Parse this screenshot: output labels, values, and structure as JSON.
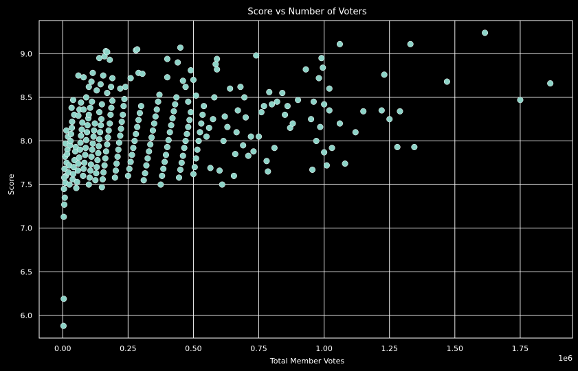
{
  "chart_data": {
    "type": "scatter",
    "title": "Score vs Number of Voters",
    "xlabel": "Total Member Votes",
    "ylabel": "Score",
    "x_offset_label": "1e6",
    "xlim": [
      -0.09,
      1.95
    ],
    "ylim": [
      5.74,
      9.38
    ],
    "x_ticks": [
      0.0,
      0.25,
      0.5,
      0.75,
      1.0,
      1.25,
      1.5,
      1.75
    ],
    "x_tick_labels": [
      "0.00",
      "0.25",
      "0.50",
      "0.75",
      "1.00",
      "1.25",
      "1.50",
      "1.75"
    ],
    "y_ticks": [
      6.0,
      6.5,
      7.0,
      7.5,
      8.0,
      8.5,
      9.0
    ],
    "y_tick_labels": [
      "6.0",
      "6.5",
      "7.0",
      "7.5",
      "8.0",
      "8.5",
      "9.0"
    ],
    "grid": true,
    "colors": {
      "background": "#000000",
      "marker": "#8dd3c7",
      "grid": "#ffffff",
      "text": "#ffffff"
    },
    "series": [
      {
        "points": [
          [
            0.003,
            5.88
          ],
          [
            0.004,
            6.19
          ],
          [
            0.004,
            7.13
          ],
          [
            0.006,
            7.27
          ],
          [
            0.008,
            7.35
          ],
          [
            0.005,
            7.45
          ],
          [
            0.01,
            7.52
          ],
          [
            0.012,
            7.6
          ],
          [
            0.007,
            7.68
          ],
          [
            0.015,
            7.75
          ],
          [
            0.009,
            7.82
          ],
          [
            0.018,
            7.9
          ],
          [
            0.011,
            7.97
          ],
          [
            0.02,
            8.05
          ],
          [
            0.014,
            8.12
          ],
          [
            0.006,
            7.58
          ],
          [
            0.022,
            7.64
          ],
          [
            0.025,
            7.72
          ],
          [
            0.017,
            7.85
          ],
          [
            0.028,
            7.95
          ],
          [
            0.03,
            8.0
          ],
          [
            0.032,
            8.08
          ],
          [
            0.035,
            8.15
          ],
          [
            0.026,
            7.5
          ],
          [
            0.038,
            7.56
          ],
          [
            0.04,
            7.62
          ],
          [
            0.042,
            7.7
          ],
          [
            0.045,
            7.78
          ],
          [
            0.048,
            7.88
          ],
          [
            0.05,
            7.93
          ],
          [
            0.036,
            8.22
          ],
          [
            0.044,
            8.3
          ],
          [
            0.034,
            8.38
          ],
          [
            0.04,
            8.47
          ],
          [
            0.052,
            7.46
          ],
          [
            0.055,
            7.53
          ],
          [
            0.058,
            7.66
          ],
          [
            0.06,
            7.74
          ],
          [
            0.063,
            7.81
          ],
          [
            0.066,
            7.9
          ],
          [
            0.068,
            7.98
          ],
          [
            0.07,
            8.06
          ],
          [
            0.073,
            8.13
          ],
          [
            0.075,
            8.21
          ],
          [
            0.06,
            8.29
          ],
          [
            0.064,
            8.36
          ],
          [
            0.078,
            7.6
          ],
          [
            0.08,
            7.68
          ],
          [
            0.083,
            7.75
          ],
          [
            0.086,
            7.84
          ],
          [
            0.088,
            7.92
          ],
          [
            0.09,
            8.01
          ],
          [
            0.093,
            8.1
          ],
          [
            0.095,
            8.18
          ],
          [
            0.098,
            8.26
          ],
          [
            0.07,
            8.44
          ],
          [
            0.09,
            8.5
          ],
          [
            0.08,
            8.36
          ],
          [
            0.1,
            7.5
          ],
          [
            0.103,
            7.58
          ],
          [
            0.106,
            7.66
          ],
          [
            0.108,
            7.73
          ],
          [
            0.11,
            7.82
          ],
          [
            0.113,
            7.9
          ],
          [
            0.115,
            7.97
          ],
          [
            0.118,
            8.05
          ],
          [
            0.12,
            8.12
          ],
          [
            0.123,
            8.2
          ],
          [
            0.1,
            8.3
          ],
          [
            0.105,
            8.38
          ],
          [
            0.112,
            8.45
          ],
          [
            0.06,
            8.75
          ],
          [
            0.08,
            8.73
          ],
          [
            0.1,
            8.62
          ],
          [
            0.11,
            8.68
          ],
          [
            0.115,
            8.78
          ],
          [
            0.125,
            7.55
          ],
          [
            0.128,
            7.63
          ],
          [
            0.13,
            7.7
          ],
          [
            0.133,
            7.78
          ],
          [
            0.136,
            7.86
          ],
          [
            0.138,
            7.94
          ],
          [
            0.14,
            8.02
          ],
          [
            0.143,
            8.1
          ],
          [
            0.146,
            8.18
          ],
          [
            0.148,
            8.25
          ],
          [
            0.14,
            8.33
          ],
          [
            0.15,
            8.42
          ],
          [
            0.13,
            8.58
          ],
          [
            0.145,
            8.65
          ],
          [
            0.155,
            8.75
          ],
          [
            0.14,
            8.95
          ],
          [
            0.16,
            8.97
          ],
          [
            0.165,
            9.03
          ],
          [
            0.17,
            9.02
          ],
          [
            0.18,
            8.93
          ],
          [
            0.15,
            7.47
          ],
          [
            0.153,
            7.56
          ],
          [
            0.156,
            7.64
          ],
          [
            0.16,
            7.72
          ],
          [
            0.163,
            7.8
          ],
          [
            0.166,
            7.88
          ],
          [
            0.17,
            7.96
          ],
          [
            0.173,
            8.04
          ],
          [
            0.176,
            8.12
          ],
          [
            0.18,
            8.2
          ],
          [
            0.183,
            8.3
          ],
          [
            0.186,
            8.38
          ],
          [
            0.19,
            8.46
          ],
          [
            0.17,
            8.55
          ],
          [
            0.185,
            8.62
          ],
          [
            0.19,
            8.72
          ],
          [
            0.2,
            7.58
          ],
          [
            0.203,
            7.66
          ],
          [
            0.206,
            7.74
          ],
          [
            0.21,
            7.82
          ],
          [
            0.213,
            7.9
          ],
          [
            0.216,
            7.98
          ],
          [
            0.22,
            8.06
          ],
          [
            0.223,
            8.14
          ],
          [
            0.226,
            8.22
          ],
          [
            0.23,
            8.3
          ],
          [
            0.233,
            8.4
          ],
          [
            0.236,
            8.48
          ],
          [
            0.22,
            8.6
          ],
          [
            0.24,
            8.62
          ],
          [
            0.25,
            7.6
          ],
          [
            0.255,
            7.68
          ],
          [
            0.26,
            7.76
          ],
          [
            0.265,
            7.84
          ],
          [
            0.27,
            7.92
          ],
          [
            0.275,
            8.0
          ],
          [
            0.28,
            8.08
          ],
          [
            0.285,
            8.16
          ],
          [
            0.29,
            8.24
          ],
          [
            0.295,
            8.32
          ],
          [
            0.3,
            8.4
          ],
          [
            0.26,
            8.72
          ],
          [
            0.28,
            9.04
          ],
          [
            0.285,
            9.05
          ],
          [
            0.29,
            8.78
          ],
          [
            0.305,
            8.77
          ],
          [
            0.31,
            7.55
          ],
          [
            0.315,
            7.63
          ],
          [
            0.32,
            7.72
          ],
          [
            0.325,
            7.8
          ],
          [
            0.33,
            7.88
          ],
          [
            0.335,
            7.96
          ],
          [
            0.34,
            8.04
          ],
          [
            0.345,
            8.12
          ],
          [
            0.35,
            8.2
          ],
          [
            0.355,
            8.28
          ],
          [
            0.36,
            8.36
          ],
          [
            0.365,
            8.45
          ],
          [
            0.37,
            8.53
          ],
          [
            0.375,
            7.5
          ],
          [
            0.38,
            7.6
          ],
          [
            0.385,
            7.68
          ],
          [
            0.39,
            7.76
          ],
          [
            0.395,
            7.84
          ],
          [
            0.4,
            7.93
          ],
          [
            0.405,
            8.01
          ],
          [
            0.41,
            8.1
          ],
          [
            0.415,
            8.18
          ],
          [
            0.42,
            8.26
          ],
          [
            0.425,
            8.34
          ],
          [
            0.43,
            8.42
          ],
          [
            0.4,
            8.94
          ],
          [
            0.4,
            8.73
          ],
          [
            0.435,
            8.5
          ],
          [
            0.44,
            8.9
          ],
          [
            0.45,
            9.07
          ],
          [
            0.445,
            7.58
          ],
          [
            0.45,
            7.67
          ],
          [
            0.455,
            7.75
          ],
          [
            0.46,
            7.83
          ],
          [
            0.465,
            7.92
          ],
          [
            0.47,
            8.0
          ],
          [
            0.475,
            8.08
          ],
          [
            0.48,
            8.16
          ],
          [
            0.485,
            8.24
          ],
          [
            0.49,
            8.33
          ],
          [
            0.46,
            8.69
          ],
          [
            0.47,
            8.62
          ],
          [
            0.48,
            8.45
          ],
          [
            0.49,
            8.81
          ],
          [
            0.5,
            7.62
          ],
          [
            0.505,
            7.7
          ],
          [
            0.51,
            7.8
          ],
          [
            0.515,
            7.9
          ],
          [
            0.52,
            8.0
          ],
          [
            0.525,
            8.1
          ],
          [
            0.53,
            8.2
          ],
          [
            0.535,
            8.3
          ],
          [
            0.54,
            8.4
          ],
          [
            0.5,
            8.7
          ],
          [
            0.51,
            8.52
          ],
          [
            0.55,
            8.05
          ],
          [
            0.56,
            8.15
          ],
          [
            0.565,
            7.69
          ],
          [
            0.575,
            8.25
          ],
          [
            0.58,
            8.5
          ],
          [
            0.585,
            8.88
          ],
          [
            0.59,
            8.94
          ],
          [
            0.59,
            8.82
          ],
          [
            0.6,
            7.66
          ],
          [
            0.61,
            7.5
          ],
          [
            0.615,
            8.0
          ],
          [
            0.62,
            8.28
          ],
          [
            0.63,
            8.16
          ],
          [
            0.64,
            8.6
          ],
          [
            0.655,
            7.6
          ],
          [
            0.66,
            7.85
          ],
          [
            0.665,
            8.1
          ],
          [
            0.67,
            8.35
          ],
          [
            0.68,
            8.62
          ],
          [
            0.69,
            7.95
          ],
          [
            0.695,
            8.5
          ],
          [
            0.7,
            8.27
          ],
          [
            0.71,
            7.83
          ],
          [
            0.72,
            8.05
          ],
          [
            0.73,
            7.88
          ],
          [
            0.74,
            8.98
          ],
          [
            0.75,
            8.05
          ],
          [
            0.76,
            8.33
          ],
          [
            0.77,
            8.4
          ],
          [
            0.78,
            7.77
          ],
          [
            0.785,
            7.65
          ],
          [
            0.79,
            8.56
          ],
          [
            0.8,
            8.42
          ],
          [
            0.81,
            7.92
          ],
          [
            0.82,
            8.45
          ],
          [
            0.84,
            8.55
          ],
          [
            0.85,
            8.3
          ],
          [
            0.86,
            8.4
          ],
          [
            0.87,
            8.15
          ],
          [
            0.88,
            8.2
          ],
          [
            0.9,
            8.47
          ],
          [
            0.93,
            8.82
          ],
          [
            0.95,
            8.25
          ],
          [
            0.955,
            7.67
          ],
          [
            0.96,
            8.45
          ],
          [
            0.97,
            8.0
          ],
          [
            0.98,
            8.72
          ],
          [
            0.985,
            8.16
          ],
          [
            0.99,
            8.95
          ],
          [
            0.995,
            8.84
          ],
          [
            1.0,
            7.87
          ],
          [
            1.0,
            8.42
          ],
          [
            1.01,
            7.72
          ],
          [
            1.02,
            8.6
          ],
          [
            1.02,
            8.35
          ],
          [
            1.03,
            7.92
          ],
          [
            1.06,
            8.2
          ],
          [
            1.08,
            7.74
          ],
          [
            1.06,
            9.11
          ],
          [
            1.12,
            8.1
          ],
          [
            1.15,
            8.34
          ],
          [
            1.22,
            8.35
          ],
          [
            1.23,
            8.76
          ],
          [
            1.25,
            8.25
          ],
          [
            1.28,
            7.93
          ],
          [
            1.29,
            8.34
          ],
          [
            1.33,
            9.11
          ],
          [
            1.345,
            7.93
          ],
          [
            1.47,
            8.68
          ],
          [
            1.615,
            9.24
          ],
          [
            1.75,
            8.47
          ],
          [
            1.865,
            8.66
          ]
        ]
      }
    ]
  }
}
